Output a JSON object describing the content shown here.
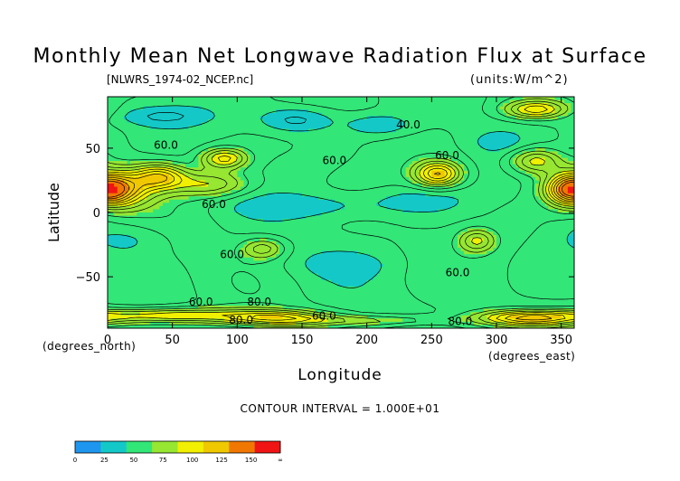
{
  "chart_data": {
    "type": "heatmap",
    "title": "Monthly Mean Net Longwave Radiation Flux at Surface",
    "subtitle": "[NLWRS_1974-02_NCEP.nc]",
    "units": "(units:W/m^2)",
    "xlabel": "Longitude",
    "ylabel": "Latitude",
    "x_unit": "(degrees_east)",
    "y_unit": "(degrees_north)",
    "xlim": [
      0,
      360
    ],
    "ylim": [
      -90,
      90
    ],
    "x_ticks": [
      "0",
      "50",
      "100",
      "150",
      "200",
      "250",
      "300",
      "350"
    ],
    "x_tick_values": [
      0,
      50,
      100,
      150,
      200,
      250,
      300,
      350
    ],
    "y_ticks": [
      "50",
      "0",
      "−50"
    ],
    "y_tick_values": [
      50,
      0,
      -50
    ],
    "contour_interval": "CONTOUR INTERVAL = 1.000E+01",
    "contour_labels": [
      {
        "text": "60.0",
        "lon": 45,
        "lat": 52
      },
      {
        "text": "60.0",
        "lon": 175,
        "lat": 40
      },
      {
        "text": "60.0",
        "lon": 262,
        "lat": 44
      },
      {
        "text": "40.0",
        "lon": 232,
        "lat": 68
      },
      {
        "text": "60.0",
        "lon": 82,
        "lat": 6
      },
      {
        "text": "60.0",
        "lon": 96,
        "lat": -33
      },
      {
        "text": "60.0",
        "lon": 270,
        "lat": -47
      },
      {
        "text": "60.0",
        "lon": 72,
        "lat": -70
      },
      {
        "text": "80.0",
        "lon": 117,
        "lat": -70
      },
      {
        "text": "80.0",
        "lon": 103,
        "lat": -84
      },
      {
        "text": "60.0",
        "lon": 167,
        "lat": -81
      },
      {
        "text": "80.0",
        "lon": 272,
        "lat": -85
      }
    ],
    "colorbar": {
      "ticks": [
        "0",
        "25",
        "50",
        "75",
        "100",
        "125",
        "150",
        "∞"
      ],
      "colors": [
        "#1e96f0",
        "#14c8c8",
        "#32e678",
        "#96e632",
        "#f0f000",
        "#f0c800",
        "#f07800",
        "#f01414"
      ],
      "interval": [
        0,
        25,
        50,
        75,
        100,
        125,
        150
      ]
    }
  }
}
